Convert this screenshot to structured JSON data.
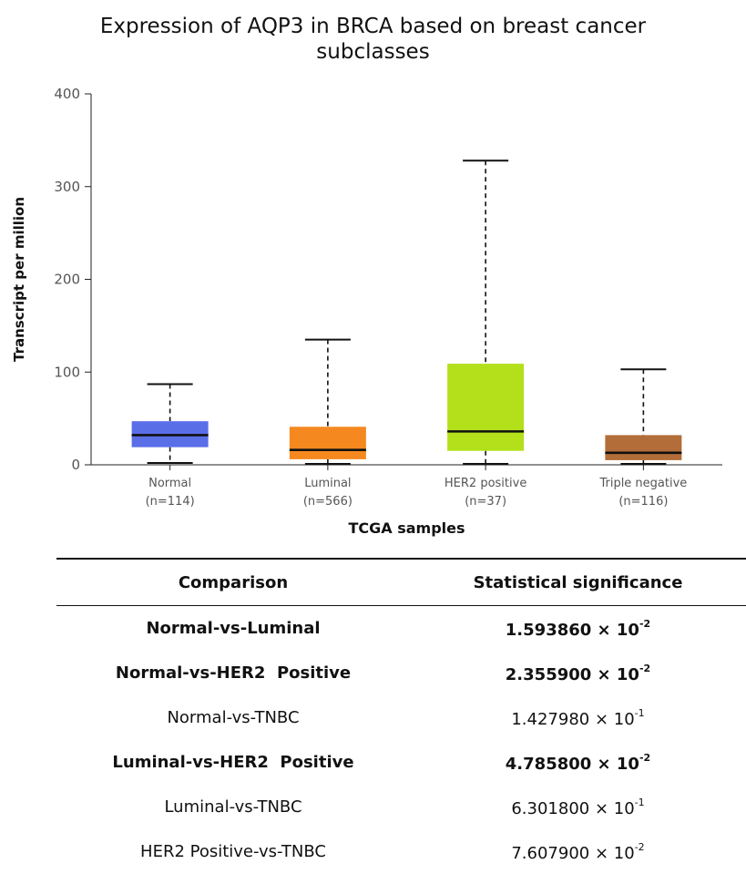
{
  "chart_data": {
    "type": "box",
    "title_lines": [
      "Expression of AQP3 in BRCA based on breast cancer",
      "subclasses"
    ],
    "xlabel": "TCGA samples",
    "ylabel": "Transcript per million",
    "ylim": [
      0,
      400
    ],
    "yticks": [
      0,
      100,
      200,
      300,
      400
    ],
    "grid": false,
    "categories": [
      {
        "name": "Normal",
        "n": "(n=114)",
        "color": "#5a6ee8",
        "min": 2,
        "q1": 19,
        "median": 32,
        "q3": 47,
        "max": 87
      },
      {
        "name": "Luminal",
        "n": "(n=566)",
        "color": "#f5891f",
        "min": 1,
        "q1": 6,
        "median": 16,
        "q3": 41,
        "max": 135
      },
      {
        "name": "HER2 positive",
        "n": "(n=37)",
        "color": "#b3e01a",
        "min": 1,
        "q1": 15,
        "median": 36,
        "q3": 109,
        "max": 328
      },
      {
        "name": "Triple negative",
        "n": "(n=116)",
        "color": "#b26d38",
        "min": 1,
        "q1": 5,
        "median": 13,
        "q3": 32,
        "max": 103
      }
    ]
  },
  "table": {
    "headers": [
      "Comparison",
      "Statistical significance"
    ],
    "rows": [
      {
        "comparison": "Normal-vs-Luminal",
        "mantissa": "1.593860 × 10",
        "exponent": "-2",
        "bold": true
      },
      {
        "comparison": "Normal-vs-HER2  Positive",
        "mantissa": "2.355900 × 10",
        "exponent": "-2",
        "bold": true
      },
      {
        "comparison": "Normal-vs-TNBC",
        "mantissa": "1.427980 × 10",
        "exponent": "-1",
        "bold": false
      },
      {
        "comparison": "Luminal-vs-HER2  Positive",
        "mantissa": "4.785800 × 10",
        "exponent": "-2",
        "bold": true
      },
      {
        "comparison": "Luminal-vs-TNBC",
        "mantissa": "6.301800 × 10",
        "exponent": "-1",
        "bold": false
      },
      {
        "comparison": "HER2 Positive-vs-TNBC",
        "mantissa": "7.607900 × 10",
        "exponent": "-2",
        "bold": false
      }
    ]
  }
}
